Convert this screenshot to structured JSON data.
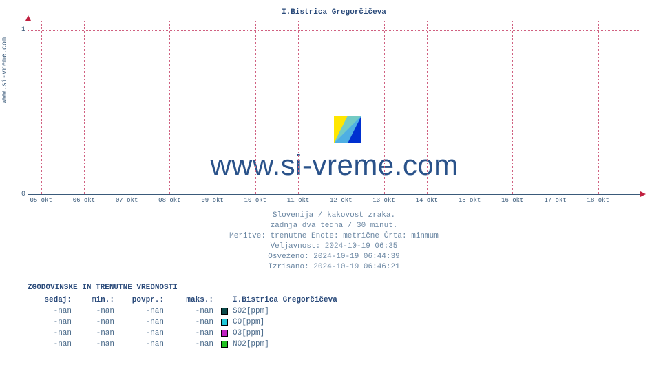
{
  "site_label": "www.si-vreme.com",
  "chart": {
    "type": "line",
    "title": "I.Bistrica Gregorčičeva",
    "watermark_text": "www.si-vreme.com",
    "background_color": "#ffffff",
    "axis_color": "#3a5a7a",
    "grid_color": "#d06080",
    "arrow_color": "#c02040",
    "text_color": "#4a6a8a",
    "title_color": "#2a4a7a",
    "title_fontsize": 11,
    "label_fontsize": 10,
    "tick_fontsize": 9,
    "ylim": [
      0,
      1.06
    ],
    "yticks": [
      0,
      1
    ],
    "xticks": [
      "05 okt",
      "06 okt",
      "07 okt",
      "08 okt",
      "09 okt",
      "10 okt",
      "11 okt",
      "12 okt",
      "13 okt",
      "14 okt",
      "15 okt",
      "16 okt",
      "17 okt",
      "18 okt"
    ],
    "series": [],
    "logo_colors": {
      "tri1": "#ffe600",
      "tri2": "#5cc6e6",
      "tri3": "#0030d0"
    }
  },
  "meta": {
    "line1": "Slovenija / kakovost zraka.",
    "line2": "zadnja dva tedna / 30 minut.",
    "line3": "Meritve: trenutne  Enote: metrične  Črta: minmum",
    "line4": "Veljavnost: 2024-10-19 06:35",
    "line5": "Osveženo: 2024-10-19 06:44:39",
    "line6": "Izrisano: 2024-10-19 06:46:21"
  },
  "table": {
    "title": "ZGODOVINSKE IN TRENUTNE VREDNOSTI",
    "headers": {
      "sedaj": "sedaj:",
      "min": "min.:",
      "povpr": "povpr.:",
      "maks": "maks.:"
    },
    "station": "I.Bistrica Gregorčičeva",
    "rows": [
      {
        "sedaj": "-nan",
        "min": "-nan",
        "povpr": "-nan",
        "maks": "-nan",
        "color": "#0a4a4a",
        "param": "SO2[ppm]"
      },
      {
        "sedaj": "-nan",
        "min": "-nan",
        "povpr": "-nan",
        "maks": "-nan",
        "color": "#20c8d8",
        "param": "CO[ppm]"
      },
      {
        "sedaj": "-nan",
        "min": "-nan",
        "povpr": "-nan",
        "maks": "-nan",
        "color": "#c020c0",
        "param": "O3[ppm]"
      },
      {
        "sedaj": "-nan",
        "min": "-nan",
        "povpr": "-nan",
        "maks": "-nan",
        "color": "#20c020",
        "param": "NO2[ppm]"
      }
    ]
  }
}
